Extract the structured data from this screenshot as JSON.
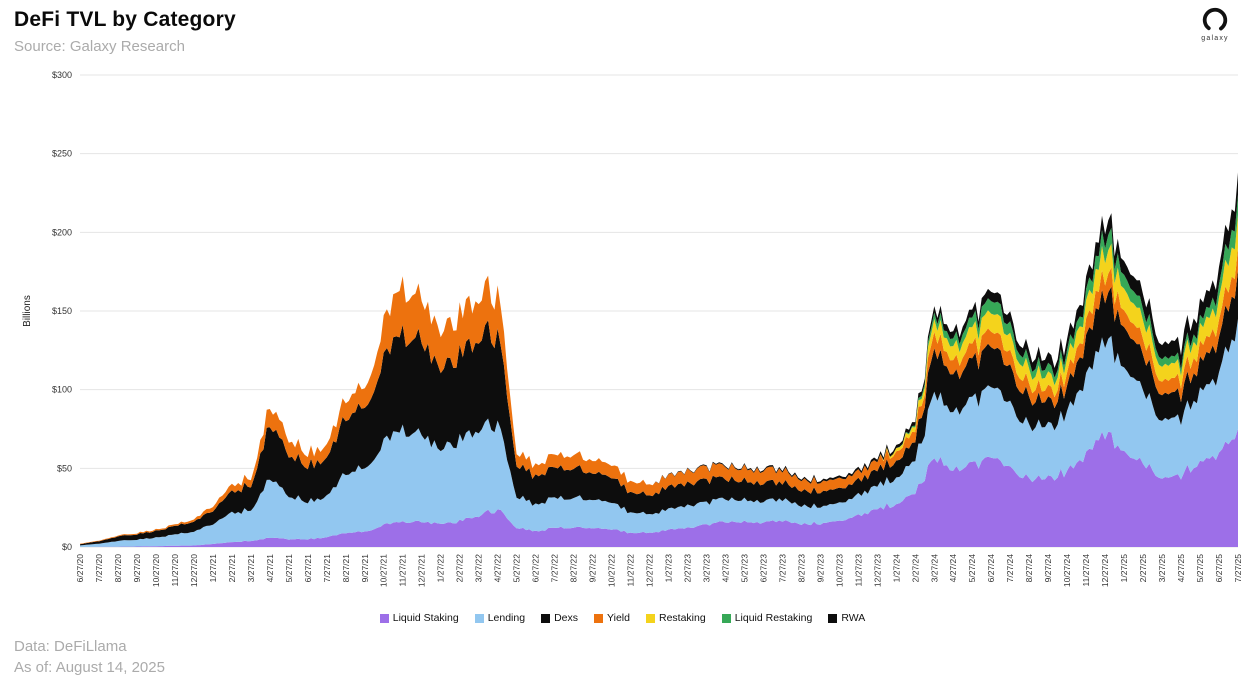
{
  "header": {
    "title": "DeFi TVL by Category",
    "source": "Source: Galaxy Research"
  },
  "logo": {
    "label": "galaxy"
  },
  "footer": {
    "line1": "Data: DeFiLlama",
    "line2": "As of: August 14, 2025"
  },
  "chart_data": {
    "type": "area",
    "stacked": true,
    "title": "DeFi TVL by Category",
    "xlabel": "",
    "ylabel": "Billions",
    "ylim": [
      0,
      300
    ],
    "yticks": [
      "$0",
      "$50",
      "$100",
      "$150",
      "$200",
      "$250",
      "$300"
    ],
    "grid": true,
    "legend_position": "bottom",
    "x": [
      "6/27/20",
      "7/27/20",
      "8/27/20",
      "9/27/20",
      "10/27/20",
      "11/27/20",
      "12/27/20",
      "1/27/21",
      "2/27/21",
      "3/27/21",
      "4/27/21",
      "5/27/21",
      "6/27/21",
      "7/27/21",
      "8/27/21",
      "9/27/21",
      "10/27/21",
      "11/27/21",
      "12/27/21",
      "1/27/22",
      "2/27/22",
      "3/27/22",
      "4/27/22",
      "5/27/22",
      "6/27/22",
      "7/27/22",
      "8/27/22",
      "9/27/22",
      "10/27/22",
      "11/27/22",
      "12/27/22",
      "1/27/23",
      "2/27/23",
      "3/27/23",
      "4/27/23",
      "5/27/23",
      "6/27/23",
      "7/27/23",
      "8/27/23",
      "9/27/23",
      "10/27/23",
      "11/27/23",
      "12/27/23",
      "1/27/24",
      "2/27/24",
      "3/27/24",
      "4/27/24",
      "5/27/24",
      "6/27/24",
      "7/27/24",
      "8/27/24",
      "9/27/24",
      "10/27/24",
      "11/27/24",
      "12/27/24",
      "1/27/25",
      "2/27/25",
      "3/27/25",
      "4/27/25",
      "5/27/25",
      "6/27/25",
      "7/27/25"
    ],
    "series": [
      {
        "name": "Liquid Staking",
        "color": "#9D6FE8",
        "values": [
          0,
          0.1,
          0.2,
          0.3,
          0.5,
          0.8,
          1,
          2,
          3,
          4,
          6,
          5,
          5,
          6,
          9,
          10,
          14,
          16,
          16,
          15,
          16,
          20,
          24,
          12,
          10,
          12,
          13,
          12,
          11,
          9,
          9,
          11,
          12,
          14,
          16,
          16,
          15,
          17,
          15,
          15,
          16,
          20,
          24,
          28,
          35,
          55,
          50,
          52,
          57,
          50,
          42,
          43,
          48,
          60,
          72,
          62,
          52,
          45,
          45,
          55,
          60,
          75
        ]
      },
      {
        "name": "Lending",
        "color": "#92C7F0",
        "values": [
          1,
          2,
          3.5,
          4.5,
          5.5,
          7,
          9,
          13,
          18,
          20,
          38,
          28,
          24,
          25,
          38,
          42,
          52,
          58,
          55,
          48,
          50,
          55,
          55,
          20,
          17,
          19,
          20,
          18,
          17,
          13,
          12,
          13,
          14,
          14,
          15,
          14,
          13,
          14,
          12,
          11,
          11,
          13,
          15,
          17,
          21,
          40,
          37,
          40,
          45,
          40,
          33,
          33,
          37,
          50,
          60,
          55,
          46,
          38,
          37,
          45,
          52,
          70
        ]
      },
      {
        "name": "Dexs",
        "color": "#0D0D0D",
        "values": [
          0.8,
          1.5,
          2.8,
          3.5,
          4.2,
          5.2,
          6.5,
          9,
          13,
          16,
          34,
          27,
          23,
          23,
          36,
          40,
          52,
          62,
          60,
          52,
          53,
          58,
          58,
          20,
          18,
          19,
          20,
          17,
          16,
          13,
          12,
          14,
          14,
          14,
          13,
          12,
          11,
          11,
          10,
          9.5,
          9,
          9.5,
          10,
          11,
          12,
          27,
          24,
          24,
          26,
          22,
          17,
          15,
          16,
          24,
          30,
          26,
          22,
          17,
          16,
          19,
          22,
          31
        ]
      },
      {
        "name": "Yield",
        "color": "#ED720E",
        "values": [
          0.2,
          0.4,
          0.5,
          0.7,
          0.8,
          1,
          1.5,
          3,
          4,
          5,
          12,
          10,
          8,
          8,
          12,
          13,
          22,
          30,
          27,
          24,
          25,
          26,
          27,
          8,
          7,
          8,
          9,
          8,
          8,
          7,
          7,
          7,
          8,
          8,
          8,
          8,
          8,
          8,
          7,
          6.5,
          6,
          5.5,
          6,
          6,
          7,
          10,
          9,
          9,
          10,
          9,
          8,
          7,
          8,
          10,
          12,
          11,
          10,
          9,
          9,
          10,
          11,
          14
        ]
      },
      {
        "name": "Restaking",
        "color": "#F4D31C",
        "values": [
          0,
          0,
          0,
          0,
          0,
          0,
          0,
          0,
          0,
          0,
          0,
          0,
          0,
          0,
          0,
          0,
          0,
          0,
          0,
          0,
          0,
          0,
          0,
          0,
          0,
          0,
          0,
          0,
          0,
          0,
          0,
          0,
          0,
          0,
          0,
          0,
          0,
          0,
          0,
          0,
          0,
          0,
          0,
          2,
          3,
          8,
          9,
          10,
          12,
          10,
          9,
          8,
          9,
          12,
          15,
          14,
          12,
          10,
          9,
          11,
          14,
          21
        ]
      },
      {
        "name": "Liquid Restaking",
        "color": "#36A857",
        "values": [
          0,
          0,
          0,
          0,
          0,
          0,
          0,
          0,
          0,
          0,
          0,
          0,
          0,
          0,
          0,
          0,
          0,
          0,
          0,
          0,
          0,
          0,
          0,
          0,
          0,
          0,
          0,
          0,
          0,
          0,
          0,
          0,
          0,
          0,
          0,
          0,
          0,
          0,
          0,
          0,
          0,
          0,
          0,
          0,
          1,
          4,
          5,
          6,
          8,
          7,
          5,
          5,
          5,
          7,
          10,
          9,
          7,
          5,
          4,
          5,
          8,
          13
        ]
      },
      {
        "name": "RWA",
        "color": "#0D0D0D",
        "values": [
          0,
          0,
          0,
          0,
          0,
          0,
          0,
          0,
          0,
          0,
          0,
          0,
          0,
          0,
          0,
          0,
          0,
          0,
          0,
          0,
          0,
          0,
          0,
          0,
          0,
          0,
          0,
          0,
          0,
          0,
          0,
          0.3,
          0.4,
          0.5,
          0.6,
          0.7,
          0.8,
          1,
          1,
          1.2,
          1.3,
          1.5,
          1.7,
          2,
          2.5,
          4,
          4.5,
          5,
          6,
          6,
          6,
          6.5,
          7,
          8,
          9,
          9,
          9.5,
          9.5,
          10,
          10.5,
          11,
          14
        ]
      }
    ]
  }
}
